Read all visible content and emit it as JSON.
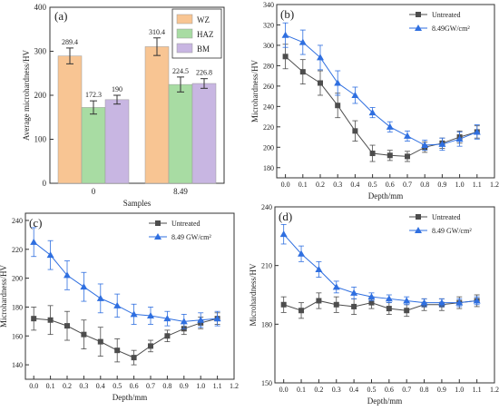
{
  "chart_data": [
    {
      "panel_label": "(a)",
      "type": "bar",
      "xlabel": "Samples",
      "ylabel": "Average microhardness/HV",
      "ylim": [
        0,
        400
      ],
      "yticks": [
        0,
        100,
        200,
        300,
        400
      ],
      "categories": [
        "0",
        "8.49"
      ],
      "legend": {
        "position": "top-right"
      },
      "grid": false,
      "series": [
        {
          "name": "WZ",
          "color": "#f8c593",
          "values": [
            289.4,
            310.4
          ],
          "errors": [
            18,
            20
          ]
        },
        {
          "name": "HAZ",
          "color": "#a8dca3",
          "values": [
            172.3,
            224.5
          ],
          "errors": [
            15,
            17
          ]
        },
        {
          "name": "BM",
          "color": "#c8b6e2",
          "values": [
            190,
            226.8
          ],
          "errors": [
            10,
            11
          ]
        }
      ],
      "data_labels": [
        [
          "289.4",
          "310.4"
        ],
        [
          "172.3",
          "224.5"
        ],
        [
          "190",
          "226.8"
        ]
      ]
    },
    {
      "panel_label": "(b)",
      "type": "line",
      "xlabel": "Depth/mm",
      "ylabel": "Microhardness/HV",
      "xlim": [
        -0.05,
        1.2
      ],
      "xticks": [
        0.0,
        0.1,
        0.2,
        0.3,
        0.4,
        0.5,
        0.6,
        0.7,
        0.8,
        0.9,
        1.0,
        1.1,
        1.2
      ],
      "ylim": [
        170,
        340
      ],
      "yticks": [
        180,
        200,
        220,
        240,
        260,
        280,
        300,
        320,
        340
      ],
      "legend": {
        "position": "top-right"
      },
      "grid": false,
      "x": [
        0.0,
        0.1,
        0.2,
        0.3,
        0.4,
        0.5,
        0.6,
        0.7,
        0.8,
        0.9,
        1.0,
        1.1
      ],
      "series": [
        {
          "name": "Untreated",
          "color": "#4d4d4d",
          "marker": "square",
          "values": [
            289,
            274,
            263,
            241,
            216,
            194,
            192,
            191,
            200,
            204,
            210,
            215
          ],
          "errors": [
            12,
            12,
            12,
            12,
            10,
            8,
            5,
            5,
            5,
            5,
            6,
            6
          ]
        },
        {
          "name": "8.49GW/cm²",
          "color": "#2f6fe0",
          "marker": "triangle",
          "values": [
            310,
            303,
            288,
            263,
            251,
            234,
            220,
            211,
            202,
            203,
            208,
            215
          ],
          "errors": [
            12,
            12,
            12,
            12,
            8,
            5,
            5,
            5,
            5,
            6,
            7,
            7
          ]
        }
      ]
    },
    {
      "panel_label": "(c)",
      "type": "line",
      "xlabel": "Depth/mm",
      "ylabel": "Microhardness/HV",
      "xlim": [
        -0.05,
        1.2
      ],
      "xticks": [
        0.0,
        0.1,
        0.2,
        0.3,
        0.4,
        0.5,
        0.6,
        0.7,
        0.8,
        0.9,
        1.0,
        1.1,
        1.2
      ],
      "ylim": [
        130,
        245
      ],
      "yticks": [
        140,
        160,
        180,
        200,
        220,
        240
      ],
      "legend": {
        "position": "top-right"
      },
      "grid": false,
      "x": [
        0.0,
        0.1,
        0.2,
        0.3,
        0.4,
        0.5,
        0.6,
        0.7,
        0.8,
        0.9,
        1.0,
        1.1
      ],
      "series": [
        {
          "name": "Untreated",
          "color": "#4d4d4d",
          "marker": "square",
          "values": [
            172,
            171,
            167,
            161,
            156,
            150,
            145,
            153,
            160,
            165,
            169,
            172
          ],
          "errors": [
            8,
            10,
            10,
            10,
            10,
            8,
            5,
            4,
            4,
            4,
            4,
            4
          ]
        },
        {
          "name": "8.49 GW/cm²",
          "color": "#2f6fe0",
          "marker": "triangle",
          "values": [
            225,
            216,
            202,
            194,
            186,
            181,
            175,
            174,
            172,
            170,
            171,
            172
          ],
          "errors": [
            10,
            10,
            10,
            10,
            10,
            8,
            7,
            6,
            5,
            5,
            5,
            5
          ]
        }
      ]
    },
    {
      "panel_label": "(d)",
      "type": "line",
      "xlabel": "Depth/mm",
      "ylabel": "Microhardness/HV",
      "xlim": [
        -0.05,
        1.2
      ],
      "xticks": [
        0.0,
        0.1,
        0.2,
        0.3,
        0.4,
        0.5,
        0.6,
        0.7,
        0.8,
        0.9,
        1.0,
        1.1,
        1.2
      ],
      "ylim": [
        150,
        240
      ],
      "yticks": [
        150,
        180,
        210,
        240
      ],
      "legend": {
        "position": "top-right"
      },
      "grid": false,
      "x": [
        0.0,
        0.1,
        0.2,
        0.3,
        0.4,
        0.5,
        0.6,
        0.7,
        0.8,
        0.9,
        1.0,
        1.1
      ],
      "series": [
        {
          "name": "Untreated",
          "color": "#4d4d4d",
          "marker": "square",
          "values": [
            190,
            187,
            192,
            190,
            189,
            191,
            188,
            187,
            190,
            190,
            191,
            192
          ],
          "errors": [
            4,
            4,
            4,
            4,
            4,
            3,
            3,
            3,
            3,
            3,
            3,
            3
          ]
        },
        {
          "name": "8.49 GW/cm²",
          "color": "#2f6fe0",
          "marker": "triangle",
          "values": [
            226,
            216,
            208,
            199,
            196,
            194,
            193,
            192,
            191,
            191,
            191,
            192
          ],
          "errors": [
            5,
            4,
            4,
            3,
            3,
            2,
            2,
            2,
            2,
            2,
            2,
            2
          ]
        }
      ]
    }
  ]
}
